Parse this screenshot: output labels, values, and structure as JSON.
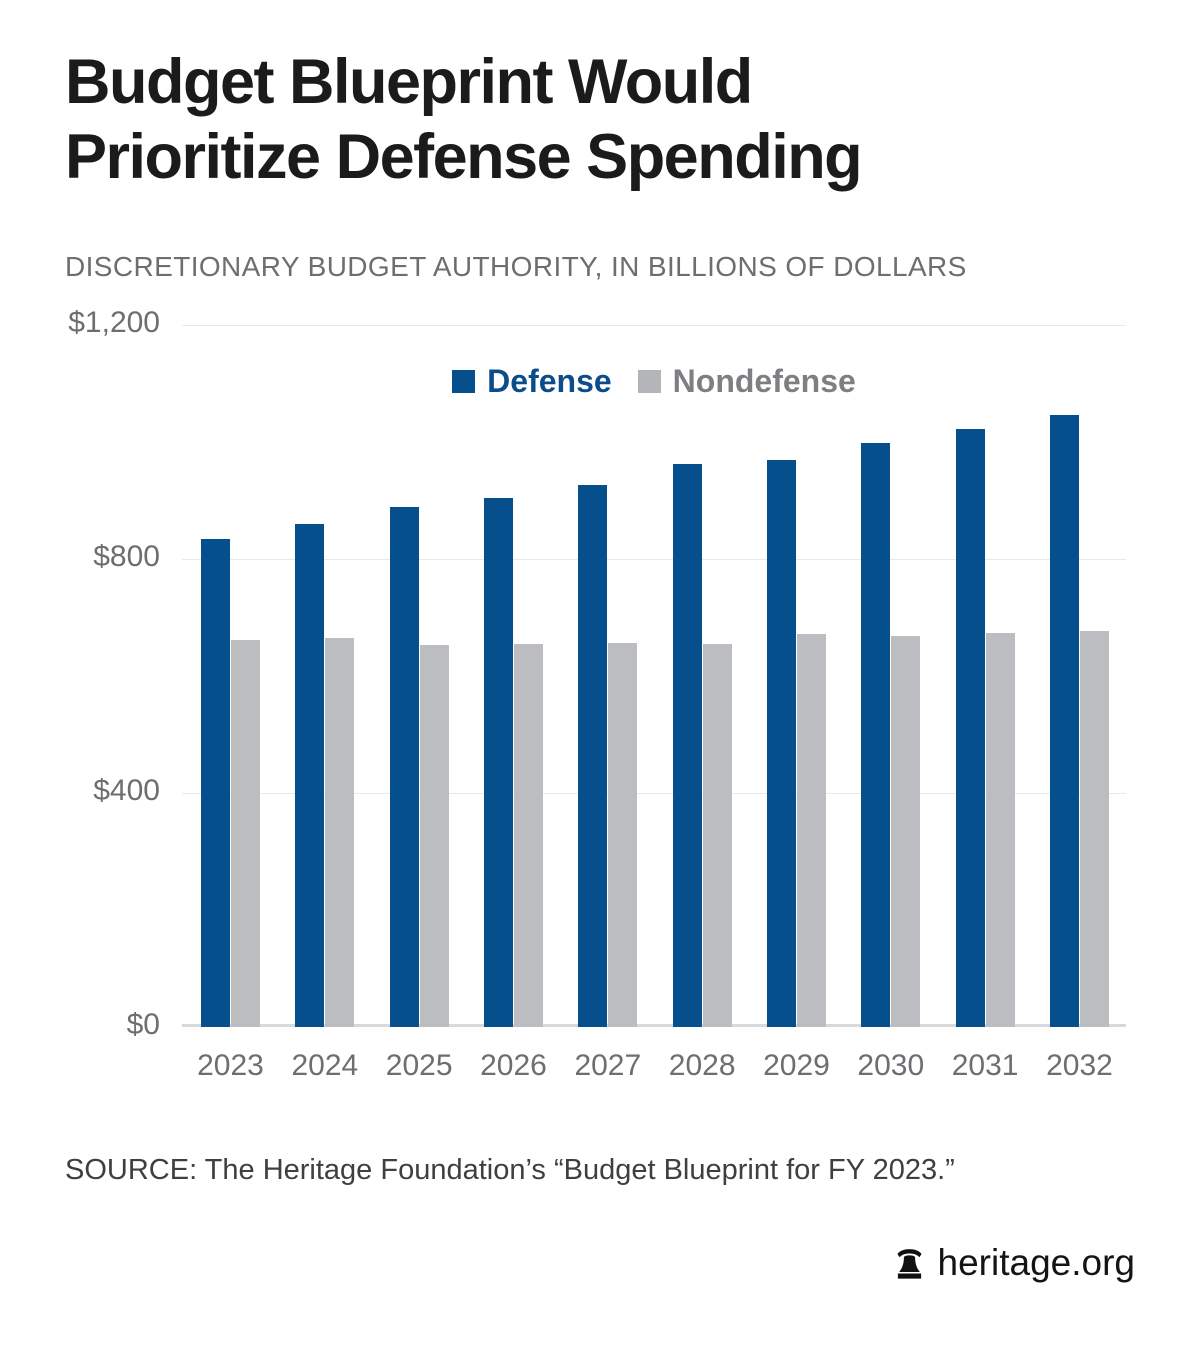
{
  "header": {
    "title_lines": [
      "Budget Blueprint Would",
      "Prioritize Defense Spending"
    ],
    "subtitle": "DISCRETIONARY BUDGET AUTHORITY, IN BILLIONS OF DOLLARS"
  },
  "chart_data": {
    "type": "bar",
    "title": "Budget Blueprint Would Prioritize Defense Spending",
    "subtitle": "DISCRETIONARY BUDGET AUTHORITY, IN BILLIONS OF DOLLARS",
    "categories": [
      "2023",
      "2024",
      "2025",
      "2026",
      "2027",
      "2028",
      "2029",
      "2030",
      "2031",
      "2032"
    ],
    "series": [
      {
        "name": "Defense",
        "color": "#064f8d",
        "values": [
          835,
          860,
          889,
          904,
          927,
          962,
          970,
          998,
          1022,
          1047
        ]
      },
      {
        "name": "Nondefense",
        "color": "#bcbdc0",
        "values": [
          661,
          665,
          653,
          655,
          656,
          655,
          672,
          668,
          673,
          677
        ]
      }
    ],
    "xlabel": "",
    "ylabel": "Billions of dollars",
    "ylim": [
      0,
      1200
    ],
    "yticks": [
      {
        "value": 1200,
        "label": "$1,200"
      },
      {
        "value": 800,
        "label": "$800"
      },
      {
        "value": 400,
        "label": "$400"
      },
      {
        "value": 0,
        "label": "$0"
      }
    ],
    "grid": true,
    "legend_position": "top-center",
    "legend": [
      {
        "label": "Defense",
        "swatch": "#064f8d",
        "text_color": "#0b4d8b"
      },
      {
        "label": "Nondefense",
        "swatch": "#b3b5b8",
        "text_color": "#7d7f82"
      }
    ]
  },
  "footer": {
    "source": "SOURCE: The Heritage Foundation’s “Budget Blueprint for FY 2023.”",
    "brand": "heritage.org",
    "brand_icon": "liberty-bell-icon"
  },
  "colors": {
    "title_text": "#1b1b1b",
    "muted_text": "#6d6e71",
    "gridline": "#e8e9ea",
    "baseline": "#d8d9da"
  }
}
